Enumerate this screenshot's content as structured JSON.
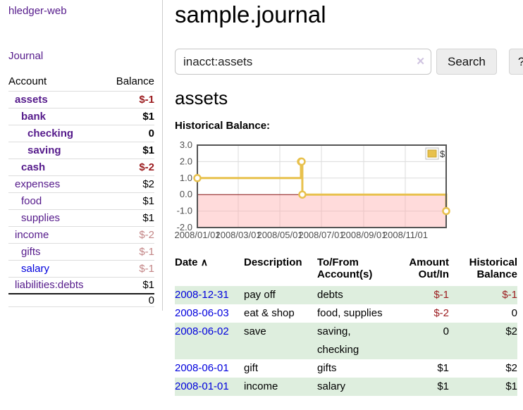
{
  "sidebar": {
    "app_title": "hledger-web",
    "journal_label": "Journal",
    "table": {
      "headers": {
        "account": "Account",
        "balance": "Balance"
      },
      "rows": [
        {
          "name": "assets",
          "indent": 1,
          "bold": true,
          "link": "purple",
          "balance": "$-1",
          "balance_class": "neg"
        },
        {
          "name": "bank",
          "indent": 2,
          "bold": true,
          "link": "purple",
          "balance": "$1",
          "balance_class": ""
        },
        {
          "name": "checking",
          "indent": 3,
          "bold": true,
          "link": "purple",
          "balance": "0",
          "balance_class": ""
        },
        {
          "name": "saving",
          "indent": 3,
          "bold": true,
          "link": "purple",
          "balance": "$1",
          "balance_class": ""
        },
        {
          "name": "cash",
          "indent": 2,
          "bold": true,
          "link": "purple",
          "balance": "$-2",
          "balance_class": "neg"
        },
        {
          "name": "expenses",
          "indent": 1,
          "bold": false,
          "link": "purple",
          "balance": "$2",
          "balance_class": ""
        },
        {
          "name": "food",
          "indent": 2,
          "bold": false,
          "link": "purple",
          "balance": "$1",
          "balance_class": ""
        },
        {
          "name": "supplies",
          "indent": 2,
          "bold": false,
          "link": "purple",
          "balance": "$1",
          "balance_class": ""
        },
        {
          "name": "income",
          "indent": 1,
          "bold": false,
          "link": "purple",
          "balance": "$-2",
          "balance_class": "negpale"
        },
        {
          "name": "gifts",
          "indent": 2,
          "bold": false,
          "link": "purple",
          "balance": "$-1",
          "balance_class": "negpale"
        },
        {
          "name": "salary",
          "indent": 2,
          "bold": false,
          "link": "blue",
          "balance": "$-1",
          "balance_class": "negpale"
        },
        {
          "name": "liabilities:debts",
          "indent": 1,
          "bold": false,
          "link": "purple",
          "balance": "$1",
          "balance_class": ""
        }
      ],
      "total": "0"
    }
  },
  "main": {
    "title": "sample.journal",
    "search": {
      "value": "inacct:assets",
      "clear_icon": "✕",
      "search_button": "Search",
      "help_button": "?"
    },
    "section_heading": "assets",
    "chart_label": "Historical Balance:"
  },
  "register": {
    "headers": {
      "date": "Date",
      "sort_indicator": "∧",
      "description": "Description",
      "accounts": "To/From\nAccount(s)",
      "amount": "Amount\nOut/In",
      "historical": "Historical\nBalance"
    },
    "rows": [
      {
        "date": "2008-12-31",
        "description": "pay off",
        "accounts": "debts",
        "amount": "$-1",
        "amount_class": "neg",
        "historical": "$-1",
        "historical_class": "neg"
      },
      {
        "date": "2008-06-03",
        "description": "eat & shop",
        "accounts": "food, supplies",
        "amount": "$-2",
        "amount_class": "neg",
        "historical": "0",
        "historical_class": ""
      },
      {
        "date": "2008-06-02",
        "description": "save",
        "accounts": "saving,\nchecking",
        "amount": "0",
        "amount_class": "",
        "historical": "$2",
        "historical_class": ""
      },
      {
        "date": "2008-06-01",
        "description": "gift",
        "accounts": "gifts",
        "amount": "$1",
        "amount_class": "",
        "historical": "$2",
        "historical_class": ""
      },
      {
        "date": "2008-01-01",
        "description": "income",
        "accounts": "salary",
        "amount": "$1",
        "amount_class": "",
        "historical": "$1",
        "historical_class": ""
      }
    ]
  },
  "chart_data": {
    "type": "line",
    "step": true,
    "title": "Historical Balance",
    "series": [
      {
        "name": "$",
        "points": [
          [
            "2008-01-01",
            1
          ],
          [
            "2008-06-01",
            2
          ],
          [
            "2008-06-02",
            2
          ],
          [
            "2008-06-03",
            0
          ],
          [
            "2008-12-31",
            -1
          ]
        ]
      }
    ],
    "xrange": [
      "2008-01-01",
      "2008-12-31"
    ],
    "ylim": [
      -2,
      3
    ],
    "yticks": [
      {
        "value": 3,
        "label": "3.0"
      },
      {
        "value": 2,
        "label": "2.0"
      },
      {
        "value": 1,
        "label": "1.0"
      },
      {
        "value": 0,
        "label": "0.0"
      },
      {
        "value": -1,
        "label": "-1.0"
      },
      {
        "value": -2,
        "label": "-2.0"
      }
    ],
    "xticks": [
      {
        "date": "2008-01-01",
        "label": "2008/01/01"
      },
      {
        "date": "2008-03-01",
        "label": "2008/03/01"
      },
      {
        "date": "2008-05-01",
        "label": "2008/05/01"
      },
      {
        "date": "2008-07-01",
        "label": "2008/07/01"
      },
      {
        "date": "2008-09-01",
        "label": "2008/09/01"
      },
      {
        "date": "2008-11-01",
        "label": "2008/11/01"
      }
    ],
    "legend_position": "top-right",
    "grid": true,
    "colors": {
      "series": "#e8c14d",
      "series_swatch_border": "#c9a42f",
      "negative_region": "rgba(255,170,170,0.42)",
      "zero_line": "#8b1a1a",
      "grid": "#dcdcdc",
      "border": "#545454"
    }
  }
}
